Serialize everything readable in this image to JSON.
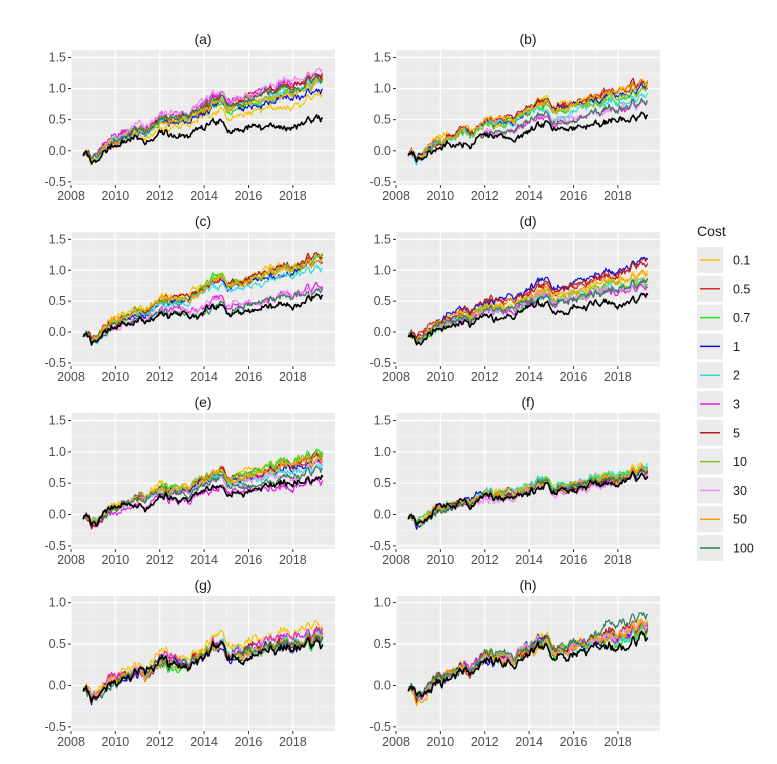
{
  "legend": {
    "title": "Cost",
    "items": [
      {
        "label": "0.1",
        "color": "#f5c400"
      },
      {
        "label": "0.5",
        "color": "#d62a2a"
      },
      {
        "label": "0.7",
        "color": "#22dd22"
      },
      {
        "label": "1",
        "color": "#1010d8"
      },
      {
        "label": "2",
        "color": "#33dddd"
      },
      {
        "label": "3",
        "color": "#e01ee0"
      },
      {
        "label": "5",
        "color": "#b01a1a"
      },
      {
        "label": "10",
        "color": "#7cc42a"
      },
      {
        "label": "30",
        "color": "#f08af0"
      },
      {
        "label": "50",
        "color": "#f5a500"
      },
      {
        "label": "100",
        "color": "#2e7d55"
      }
    ],
    "benchmark_color": "#000000"
  },
  "chart_data": [
    {
      "panel": "(a)",
      "type": "line",
      "x_ticks": [
        "2008",
        "2010",
        "2012",
        "2014",
        "2016",
        "2018"
      ],
      "y_ticks": [
        "-0.5",
        "0.0",
        "0.5",
        "1.0",
        "1.5"
      ],
      "xlim": [
        2008,
        2019.9
      ],
      "ylim": [
        -0.55,
        1.62
      ],
      "benchmark_end": 0.55,
      "series": [
        {
          "name": "0.1",
          "end": 0.88
        },
        {
          "name": "0.5",
          "end": 1.22
        },
        {
          "name": "0.7",
          "end": 1.05
        },
        {
          "name": "1",
          "end": 1.0
        },
        {
          "name": "2",
          "end": 1.12
        },
        {
          "name": "3",
          "end": 1.25
        },
        {
          "name": "5",
          "end": 1.2
        },
        {
          "name": "10",
          "end": 1.15
        },
        {
          "name": "30",
          "end": 1.32
        },
        {
          "name": "50",
          "end": 1.1
        },
        {
          "name": "100",
          "end": 1.18
        }
      ]
    },
    {
      "panel": "(b)",
      "type": "line",
      "x_ticks": [
        "2008",
        "2010",
        "2012",
        "2014",
        "2016",
        "2018"
      ],
      "y_ticks": [
        "-0.5",
        "0.0",
        "0.5",
        "1.0",
        "1.5"
      ],
      "xlim": [
        2008,
        2019.9
      ],
      "ylim": [
        -0.55,
        1.62
      ],
      "benchmark_end": 0.55,
      "series": [
        {
          "name": "0.1",
          "end": 1.1
        },
        {
          "name": "0.5",
          "end": 1.1
        },
        {
          "name": "0.7",
          "end": 1.0
        },
        {
          "name": "1",
          "end": 1.05
        },
        {
          "name": "2",
          "end": 0.95
        },
        {
          "name": "3",
          "end": 0.78
        },
        {
          "name": "5",
          "end": 1.12
        },
        {
          "name": "10",
          "end": 1.0
        },
        {
          "name": "30",
          "end": 0.78
        },
        {
          "name": "50",
          "end": 1.08
        },
        {
          "name": "100",
          "end": 0.82
        }
      ]
    },
    {
      "panel": "(c)",
      "type": "line",
      "x_ticks": [
        "2008",
        "2010",
        "2012",
        "2014",
        "2016",
        "2018"
      ],
      "y_ticks": [
        "-0.5",
        "0.0",
        "0.5",
        "1.0",
        "1.5"
      ],
      "xlim": [
        2008,
        2019.9
      ],
      "ylim": [
        -0.55,
        1.62
      ],
      "benchmark_end": 0.55,
      "series": [
        {
          "name": "0.1",
          "end": 1.3
        },
        {
          "name": "0.5",
          "end": 1.2
        },
        {
          "name": "0.7",
          "end": 1.18
        },
        {
          "name": "1",
          "end": 1.12
        },
        {
          "name": "2",
          "end": 1.05
        },
        {
          "name": "3",
          "end": 0.72
        },
        {
          "name": "5",
          "end": 1.25
        },
        {
          "name": "10",
          "end": 1.22
        },
        {
          "name": "30",
          "end": 0.7
        },
        {
          "name": "50",
          "end": 1.18
        },
        {
          "name": "100",
          "end": 0.65
        }
      ]
    },
    {
      "panel": "(d)",
      "type": "line",
      "x_ticks": [
        "2008",
        "2010",
        "2012",
        "2014",
        "2016",
        "2018"
      ],
      "y_ticks": [
        "-0.5",
        "0.0",
        "0.5",
        "1.0",
        "1.5"
      ],
      "xlim": [
        2008,
        2019.9
      ],
      "ylim": [
        -0.55,
        1.62
      ],
      "benchmark_end": 0.55,
      "series": [
        {
          "name": "0.1",
          "end": 0.92
        },
        {
          "name": "0.5",
          "end": 1.1
        },
        {
          "name": "0.7",
          "end": 0.8
        },
        {
          "name": "1",
          "end": 1.15
        },
        {
          "name": "2",
          "end": 0.85
        },
        {
          "name": "3",
          "end": 0.78
        },
        {
          "name": "5",
          "end": 1.1
        },
        {
          "name": "10",
          "end": 0.88
        },
        {
          "name": "30",
          "end": 0.82
        },
        {
          "name": "50",
          "end": 0.95
        },
        {
          "name": "100",
          "end": 0.8
        }
      ]
    },
    {
      "panel": "(e)",
      "type": "line",
      "x_ticks": [
        "2008",
        "2010",
        "2012",
        "2014",
        "2016",
        "2018"
      ],
      "y_ticks": [
        "-0.5",
        "0.0",
        "0.5",
        "1.0",
        "1.5"
      ],
      "xlim": [
        2008,
        2019.9
      ],
      "ylim": [
        -0.55,
        1.62
      ],
      "benchmark_end": 0.55,
      "series": [
        {
          "name": "0.1",
          "end": 0.98
        },
        {
          "name": "0.5",
          "end": 0.9
        },
        {
          "name": "0.7",
          "end": 0.98
        },
        {
          "name": "1",
          "end": 0.85
        },
        {
          "name": "2",
          "end": 0.8
        },
        {
          "name": "3",
          "end": 0.55
        },
        {
          "name": "5",
          "end": 0.92
        },
        {
          "name": "10",
          "end": 0.95
        },
        {
          "name": "30",
          "end": 0.78
        },
        {
          "name": "50",
          "end": 0.9
        },
        {
          "name": "100",
          "end": 0.72
        }
      ]
    },
    {
      "panel": "(f)",
      "type": "line",
      "x_ticks": [
        "2008",
        "2010",
        "2012",
        "2014",
        "2016",
        "2018"
      ],
      "y_ticks": [
        "-0.5",
        "0.0",
        "0.5",
        "1.0",
        "1.5"
      ],
      "xlim": [
        2008,
        2019.9
      ],
      "ylim": [
        -0.55,
        1.62
      ],
      "benchmark_end": 0.6,
      "series": [
        {
          "name": "0.1",
          "end": 0.75
        },
        {
          "name": "0.5",
          "end": 0.7
        },
        {
          "name": "0.7",
          "end": 0.72
        },
        {
          "name": "1",
          "end": 0.68
        },
        {
          "name": "2",
          "end": 0.75
        },
        {
          "name": "3",
          "end": 0.62
        },
        {
          "name": "5",
          "end": 0.66
        },
        {
          "name": "10",
          "end": 0.7
        },
        {
          "name": "30",
          "end": 0.6
        },
        {
          "name": "50",
          "end": 0.72
        },
        {
          "name": "100",
          "end": 0.68
        }
      ]
    },
    {
      "panel": "(g)",
      "type": "line",
      "x_ticks": [
        "2008",
        "2010",
        "2012",
        "2014",
        "2016",
        "2018"
      ],
      "y_ticks": [
        "-0.5",
        "0.0",
        "0.5",
        "1.0"
      ],
      "xlim": [
        2008,
        2019.9
      ],
      "ylim": [
        -0.55,
        1.08
      ],
      "benchmark_end": 0.52,
      "series": [
        {
          "name": "0.1",
          "end": 0.78
        },
        {
          "name": "0.5",
          "end": 0.6
        },
        {
          "name": "0.7",
          "end": 0.58
        },
        {
          "name": "1",
          "end": 0.6
        },
        {
          "name": "2",
          "end": 0.62
        },
        {
          "name": "3",
          "end": 0.65
        },
        {
          "name": "5",
          "end": 0.6
        },
        {
          "name": "10",
          "end": 0.57
        },
        {
          "name": "30",
          "end": 0.6
        },
        {
          "name": "50",
          "end": 0.6
        },
        {
          "name": "100",
          "end": 0.58
        }
      ]
    },
    {
      "panel": "(h)",
      "type": "line",
      "x_ticks": [
        "2008",
        "2010",
        "2012",
        "2014",
        "2016",
        "2018"
      ],
      "y_ticks": [
        "-0.5",
        "0.0",
        "0.5",
        "1.0"
      ],
      "xlim": [
        2008,
        2019.9
      ],
      "ylim": [
        -0.55,
        1.08
      ],
      "benchmark_end": 0.55,
      "series": [
        {
          "name": "0.1",
          "end": 0.75
        },
        {
          "name": "0.5",
          "end": 0.7
        },
        {
          "name": "0.7",
          "end": 0.65
        },
        {
          "name": "1",
          "end": 0.7
        },
        {
          "name": "2",
          "end": 0.68
        },
        {
          "name": "3",
          "end": 0.72
        },
        {
          "name": "5",
          "end": 0.7
        },
        {
          "name": "10",
          "end": 0.75
        },
        {
          "name": "30",
          "end": 0.7
        },
        {
          "name": "50",
          "end": 0.72
        },
        {
          "name": "100",
          "end": 0.8
        }
      ]
    }
  ]
}
